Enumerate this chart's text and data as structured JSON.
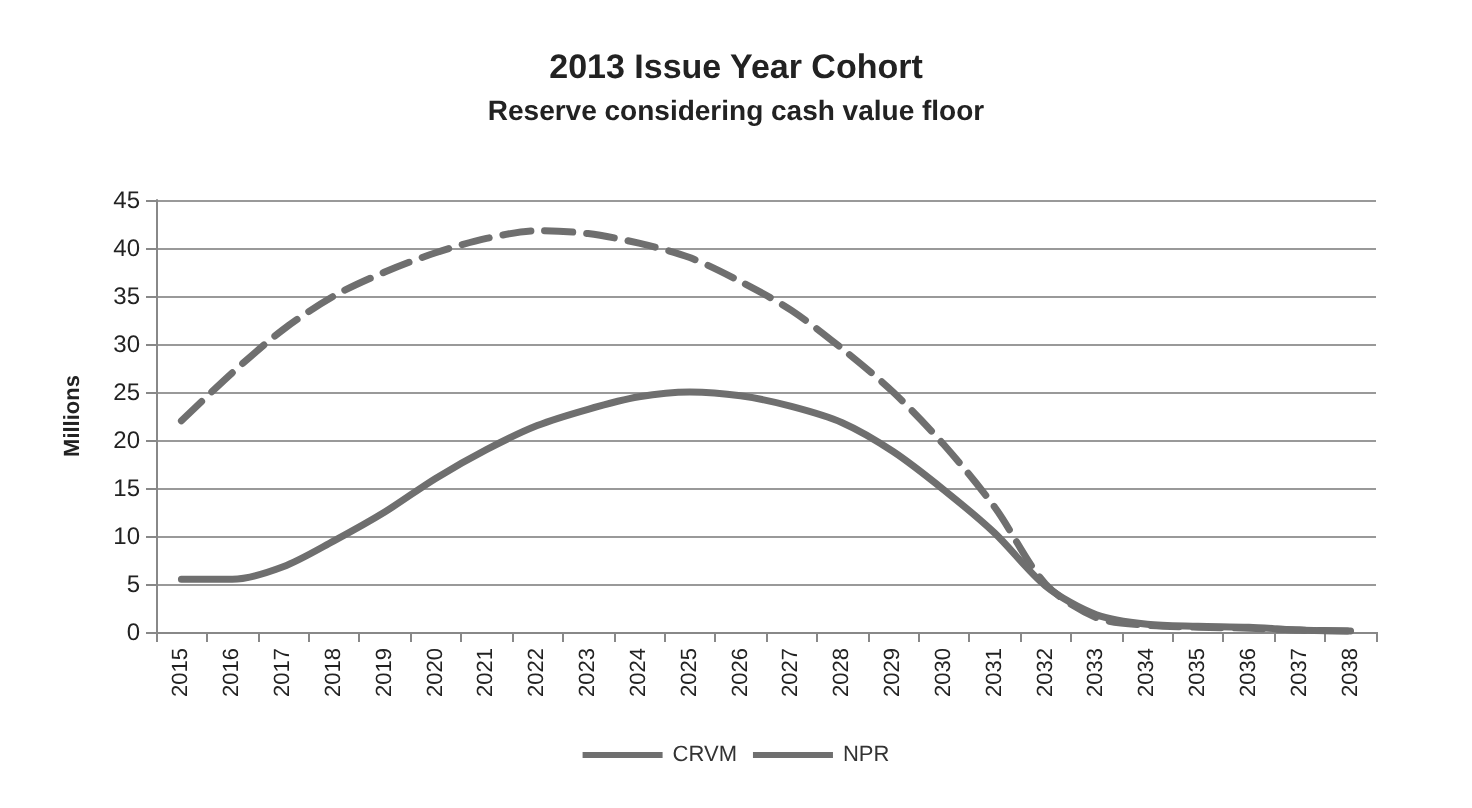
{
  "chart_data": {
    "type": "line",
    "title": "2013 Issue Year Cohort",
    "subtitle": "Reserve considering cash value floor",
    "ylabel": "Millions",
    "categories": [
      "2015",
      "2016",
      "2017",
      "2018",
      "2019",
      "2020",
      "2021",
      "2022",
      "2023",
      "2024",
      "2025",
      "2026",
      "2027",
      "2028",
      "2029",
      "2030",
      "2031",
      "2032",
      "2033",
      "2034",
      "2035",
      "2036",
      "2037",
      "2038"
    ],
    "series": [
      {
        "name": "CRVM",
        "color": "#6f6f6f",
        "line_style": "dashed",
        "values": [
          22,
          27,
          31.5,
          35,
          37.5,
          39.5,
          41,
          41.8,
          41.5,
          40.5,
          39,
          36.5,
          33.5,
          29.5,
          25,
          19.5,
          13,
          5,
          1.5,
          0.7,
          0.5,
          0.4,
          0.2,
          0.1
        ]
      },
      {
        "name": "NPR",
        "color": "#6f6f6f",
        "line_style": "solid",
        "values": [
          5.5,
          5.5,
          6.8,
          9.5,
          12.5,
          16,
          19,
          21.5,
          23.2,
          24.5,
          25,
          24.6,
          23.5,
          21.8,
          18.8,
          14.8,
          10.3,
          4.8,
          1.8,
          0.8,
          0.6,
          0.5,
          0.2,
          0.1
        ]
      }
    ],
    "ylim": [
      0,
      45
    ],
    "yticks": [
      0,
      5,
      10,
      15,
      20,
      25,
      30,
      35,
      40,
      45
    ],
    "grid": "y",
    "legend": "bottom",
    "marker": "none"
  }
}
